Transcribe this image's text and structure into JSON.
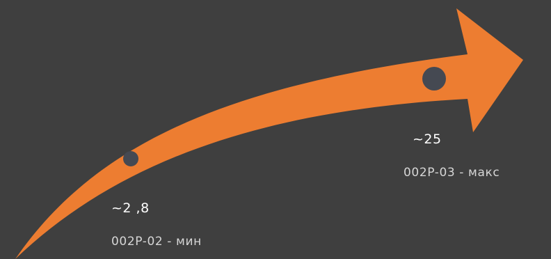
{
  "colors": {
    "background": "#3f3f3f",
    "arrow": "#ed7d31",
    "marker": "#454952"
  },
  "points": [
    {
      "value_label": "~2 ,8",
      "description": "002P-02 - мин"
    },
    {
      "value_label": "~25",
      "description": "002P-03 - макс"
    }
  ]
}
